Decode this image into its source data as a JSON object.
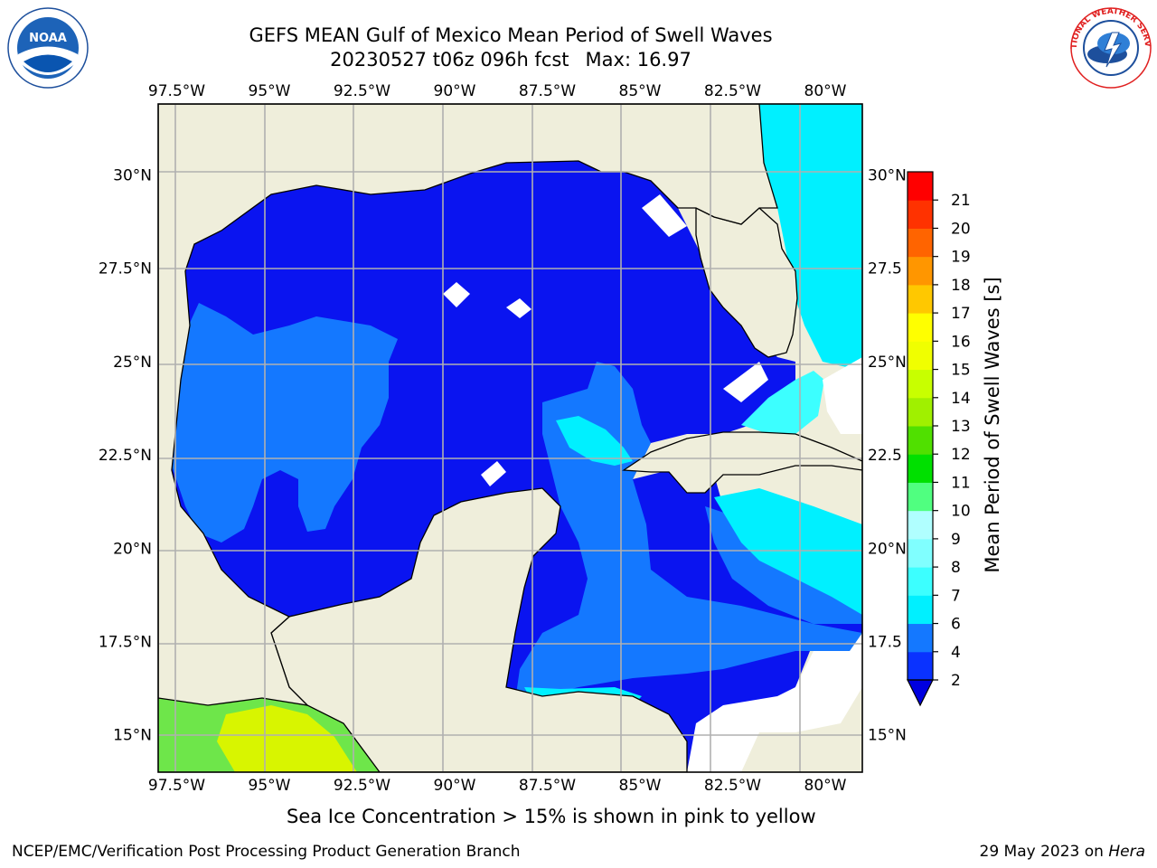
{
  "title": {
    "line1": "GEFS MEAN Gulf of Mexico Mean Period of Swell Waves",
    "line2_run": "20230527 t06z 096h fcst",
    "line2_max": "Max: 16.97"
  },
  "map": {
    "lon_labels": [
      "97.5°W",
      "95°W",
      "92.5°W",
      "90°W",
      "87.5°W",
      "85°W",
      "82.5°W",
      "80°W"
    ],
    "lat_labels_left": [
      "30°N",
      "27.5°N",
      "25°N",
      "22.5°N",
      "20°N",
      "17.5°N",
      "15°N"
    ],
    "lat_labels_right": [
      "30°N",
      "27.5",
      "25°N",
      "22.5",
      "20°N",
      "17.5",
      "15°N"
    ],
    "extent": {
      "lon_min": -98.0,
      "lon_max": -79.0,
      "lat_min": 14.0,
      "lat_max": 31.9
    }
  },
  "colorbar": {
    "label": "Mean Period of Swell Waves [s]",
    "ticks": [
      "2",
      "4",
      "6",
      "7",
      "8",
      "9",
      "10",
      "11",
      "12",
      "13",
      "14",
      "15",
      "16",
      "17",
      "18",
      "19",
      "20",
      "21"
    ],
    "colors": [
      "#0a32ff",
      "#1478ff",
      "#00f0ff",
      "#3cffff",
      "#80ffff",
      "#b0ffff",
      "#50ff80",
      "#00e000",
      "#50e000",
      "#a0f000",
      "#c8ff00",
      "#f0ff00",
      "#ffff00",
      "#ffc800",
      "#ff9600",
      "#ff6400",
      "#ff3200",
      "#ff0000"
    ],
    "extend_color": "#0000e0"
  },
  "note": "Sea Ice Concentration > 15% is shown in pink to yellow",
  "footer": {
    "credit": "NCEP/EMC/Verification Post Processing Product Generation Branch",
    "date": "29 May 2023 on",
    "machine": "Hera"
  },
  "logos": {
    "left": "NOAA",
    "right": "NATIONAL WEATHER SERVICE"
  },
  "colors": {
    "land": "#efeedb",
    "deep_blue": "#0a14f0",
    "mid_blue": "#1478ff",
    "cyan": "#00f0ff",
    "grid": "#b0b0b0"
  }
}
